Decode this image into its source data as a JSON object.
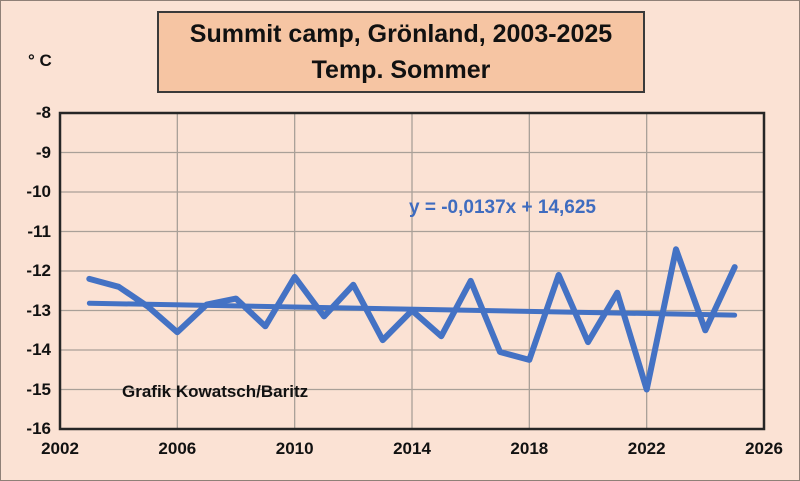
{
  "title": {
    "line1": "Summit camp, Grönland, 2003-2025",
    "line2": "Temp. Sommer"
  },
  "y_axis": {
    "unit": "° C",
    "ticks": [
      "-8",
      "-9",
      "-10",
      "-11",
      "-12",
      "-13",
      "-14",
      "-15",
      "-16"
    ]
  },
  "x_axis": {
    "ticks": [
      "2002",
      "2006",
      "2010",
      "2014",
      "2018",
      "2022",
      "2026"
    ]
  },
  "annotation": {
    "equation": "y = -0,0137x + 14,625",
    "credit": "Grafik Kowatsch/Baritz"
  },
  "colors": {
    "background": "#fbe2d4",
    "title_box_fill": "#f6c5a3",
    "line_blue": "#4472c4",
    "grid_gray": "#a9a098",
    "axis_border": "#262626"
  },
  "chart_data": {
    "type": "line",
    "title": "Summit camp, Grönland, 2003-2025 — Temp. Sommer",
    "xlabel": "",
    "ylabel": "° C",
    "xlim": [
      2002,
      2026
    ],
    "ylim": [
      -8,
      -16
    ],
    "grid": true,
    "x": [
      2003,
      2004,
      2005,
      2006,
      2007,
      2008,
      2009,
      2010,
      2011,
      2012,
      2013,
      2014,
      2015,
      2016,
      2017,
      2018,
      2019,
      2020,
      2021,
      2022,
      2023,
      2024,
      2025
    ],
    "values": [
      -12.2,
      -12.4,
      -12.9,
      -13.55,
      -12.85,
      -12.7,
      -13.4,
      -12.15,
      -13.15,
      -12.35,
      -13.75,
      -13.0,
      -13.65,
      -12.25,
      -14.05,
      -14.25,
      -12.1,
      -13.8,
      -12.55,
      -15.0,
      -11.45,
      -13.5,
      -11.9
    ],
    "trend": {
      "label": "y = -0,0137x + 14,625",
      "slope": -0.0137,
      "intercept": 14.625,
      "x_start": 2003,
      "x_end": 2025
    }
  }
}
